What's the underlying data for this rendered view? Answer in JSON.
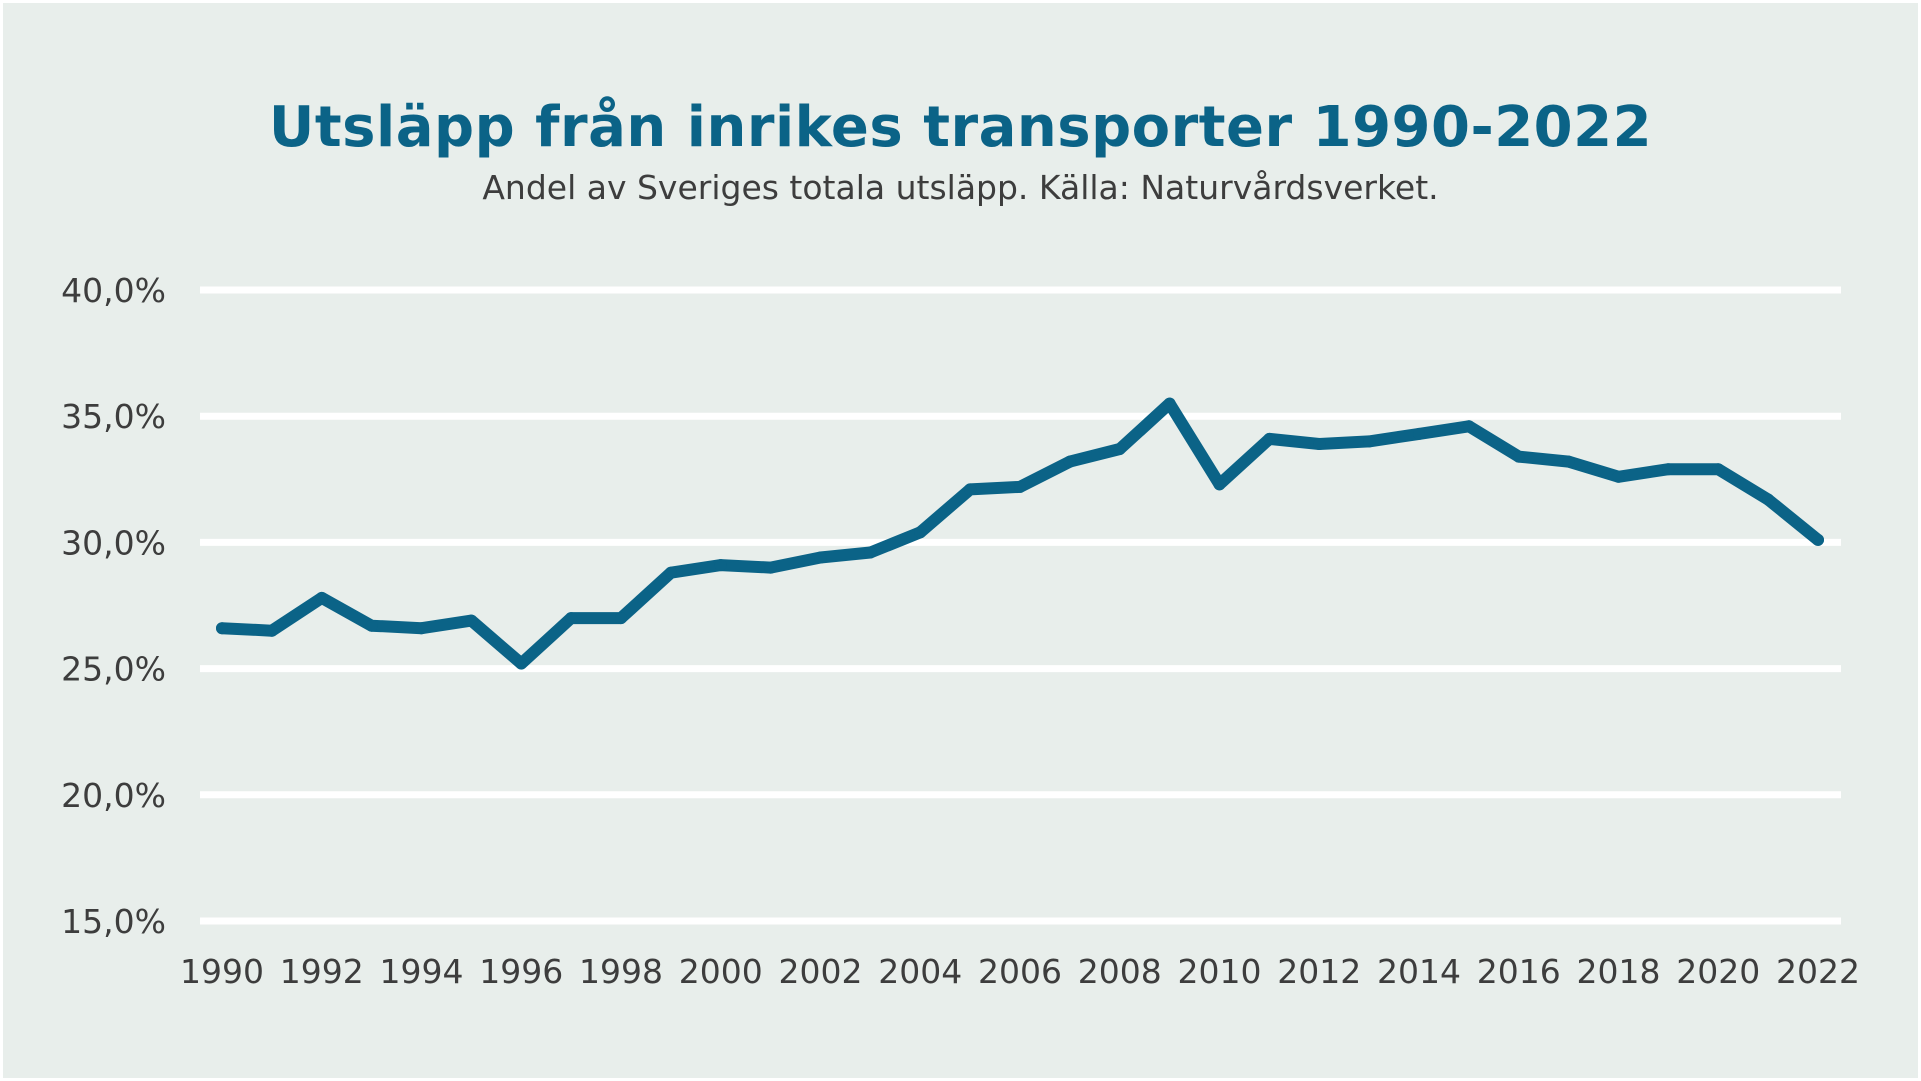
{
  "chart_data": {
    "type": "line",
    "title": "Utsläpp från inrikes transporter 1990-2022",
    "subtitle": "Andel av Sveriges totala utsläpp. Källa: Naturvårdsverket.",
    "xlabel": "",
    "ylabel": "",
    "ylim": [
      15,
      40
    ],
    "grid": true,
    "legend": "none",
    "colors": {
      "line": "#0b6387",
      "title": "#0b6387",
      "grid": "#ffffff",
      "background": "#e8eeeb",
      "text": "#3d3d3d"
    },
    "yticks": [
      "15,0%",
      "20,0%",
      "25,0%",
      "30,0%",
      "35,0%",
      "40,0%"
    ],
    "ytick_values": [
      15,
      20,
      25,
      30,
      35,
      40
    ],
    "xticks": [
      "1990",
      "1992",
      "1994",
      "1996",
      "1998",
      "2000",
      "2002",
      "2004",
      "2006",
      "2008",
      "2010",
      "2012",
      "2014",
      "2016",
      "2018",
      "2020",
      "2022"
    ],
    "x": [
      1990,
      1991,
      1992,
      1993,
      1994,
      1995,
      1996,
      1997,
      1998,
      1999,
      2000,
      2001,
      2002,
      2003,
      2004,
      2005,
      2006,
      2007,
      2008,
      2009,
      2010,
      2011,
      2012,
      2013,
      2014,
      2015,
      2016,
      2017,
      2018,
      2019,
      2020,
      2021,
      2022
    ],
    "series": [
      {
        "values": [
          26.6,
          26.5,
          27.8,
          26.7,
          26.6,
          26.9,
          25.2,
          27.0,
          27.0,
          28.8,
          29.1,
          29.0,
          29.4,
          29.6,
          30.4,
          32.1,
          32.2,
          33.2,
          33.7,
          35.5,
          32.3,
          34.1,
          33.9,
          34.0,
          34.3,
          34.6,
          33.4,
          33.2,
          32.6,
          32.9,
          32.9,
          31.7,
          30.1
        ]
      }
    ]
  }
}
